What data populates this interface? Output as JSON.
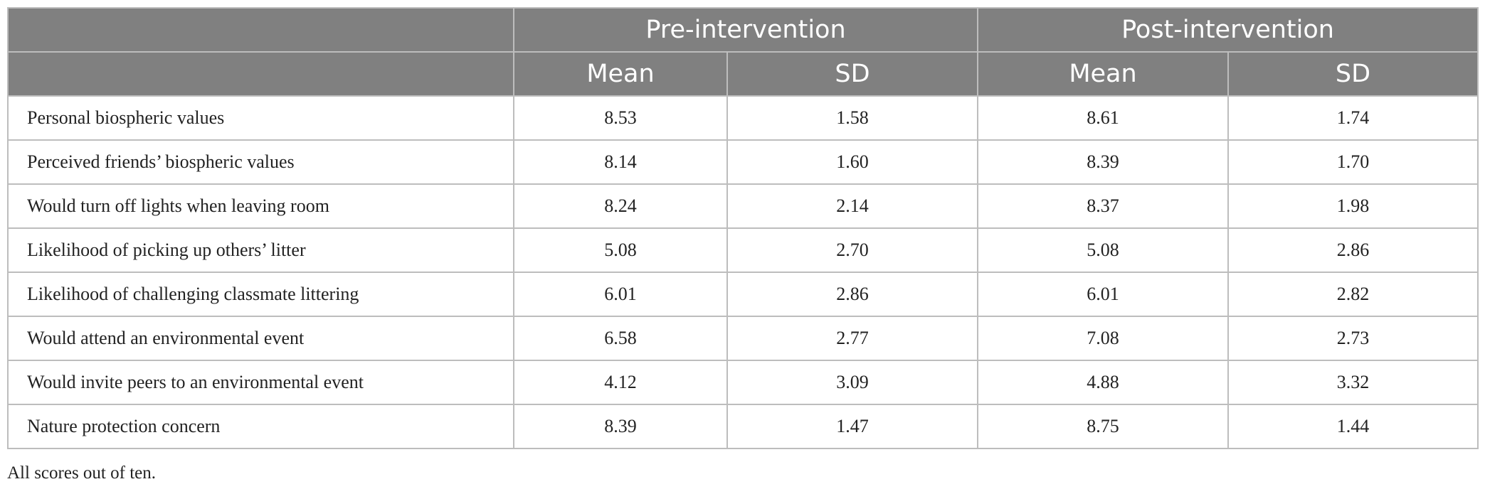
{
  "table": {
    "group_headers": {
      "empty": "",
      "pre": "Pre-intervention",
      "post": "Post-intervention"
    },
    "sub_headers": {
      "empty": "",
      "pre_mean": "Mean",
      "pre_sd": "SD",
      "post_mean": "Mean",
      "post_sd": "SD"
    },
    "rows": [
      {
        "label": "Personal biospheric values",
        "pre_mean": "8.53",
        "pre_sd": "1.58",
        "post_mean": "8.61",
        "post_sd": "1.74"
      },
      {
        "label": "Perceived friends’ biospheric values",
        "pre_mean": "8.14",
        "pre_sd": "1.60",
        "post_mean": "8.39",
        "post_sd": "1.70"
      },
      {
        "label": "Would turn off lights when leaving room",
        "pre_mean": "8.24",
        "pre_sd": "2.14",
        "post_mean": "8.37",
        "post_sd": "1.98"
      },
      {
        "label": "Likelihood of picking up others’ litter",
        "pre_mean": "5.08",
        "pre_sd": "2.70",
        "post_mean": "5.08",
        "post_sd": "2.86"
      },
      {
        "label": "Likelihood of challenging classmate littering",
        "pre_mean": "6.01",
        "pre_sd": "2.86",
        "post_mean": "6.01",
        "post_sd": "2.82"
      },
      {
        "label": "Would attend an environmental event",
        "pre_mean": "6.58",
        "pre_sd": "2.77",
        "post_mean": "7.08",
        "post_sd": "2.73"
      },
      {
        "label": "Would invite peers to an environmental event",
        "pre_mean": "4.12",
        "pre_sd": "3.09",
        "post_mean": "4.88",
        "post_sd": "3.32"
      },
      {
        "label": "Nature protection concern",
        "pre_mean": "8.39",
        "pre_sd": "1.47",
        "post_mean": "8.75",
        "post_sd": "1.44"
      }
    ]
  },
  "footnote": "All scores out of ten.",
  "colors": {
    "header_bg": "#808080",
    "header_text": "#ffffff",
    "border": "#bdbdbd"
  }
}
